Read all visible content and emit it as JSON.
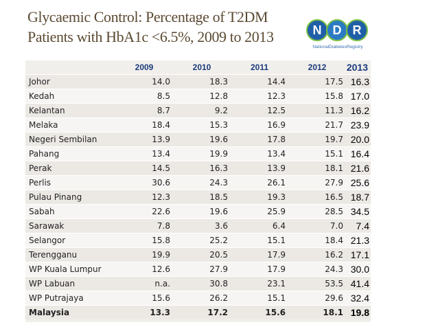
{
  "title": {
    "line1": "Glycaemic Control: Percentage of T2DM",
    "line2": "Patients with HbA1c <6.5%, 2009 to 2013"
  },
  "logo": {
    "letters": [
      "N",
      "D",
      "R"
    ],
    "caption": "NationalDiabetesRegistry",
    "colors": {
      "blue": "#1f5fa8",
      "green": "#7bc043"
    }
  },
  "table": {
    "headers": [
      "",
      "2009",
      "2010",
      "2011",
      "2012",
      "2013"
    ],
    "rows": [
      [
        "Johor",
        "14.0",
        "18.3",
        "14.4",
        "17.5",
        "16.3"
      ],
      [
        "Kedah",
        "8.5",
        "12.8",
        "12.3",
        "15.8",
        "17.0"
      ],
      [
        "Kelantan",
        "8.7",
        "9.2",
        "12.5",
        "11.3",
        "16.2"
      ],
      [
        "Melaka",
        "18.4",
        "15.3",
        "16.9",
        "21.7",
        "23.9"
      ],
      [
        "Negeri Sembilan",
        "13.9",
        "19.6",
        "17.8",
        "19.7",
        "20.0"
      ],
      [
        "Pahang",
        "13.4",
        "19.9",
        "13.4",
        "15.1",
        "16.4"
      ],
      [
        "Perak",
        "14.5",
        "16.3",
        "13.9",
        "18.1",
        "21.6"
      ],
      [
        "Perlis",
        "30.6",
        "24.3",
        "26.1",
        "27.9",
        "25.6"
      ],
      [
        "Pulau Pinang",
        "12.3",
        "18.5",
        "19.3",
        "16.5",
        "18.7"
      ],
      [
        "Sabah",
        "22.6",
        "19.6",
        "25.9",
        "28.5",
        "34.5"
      ],
      [
        "Sarawak",
        "7.8",
        "3.6",
        "6.4",
        "7.0",
        "7.4"
      ],
      [
        "Selangor",
        "15.8",
        "25.2",
        "15.1",
        "18.4",
        "21.3"
      ],
      [
        "Terengganu",
        "19.9",
        "20.5",
        "17.9",
        "16.2",
        "17.1"
      ],
      [
        "WP Kuala Lumpur",
        "12.6",
        "27.9",
        "17.9",
        "24.3",
        "30.0"
      ],
      [
        "WP Labuan",
        "n.a.",
        "30.8",
        "23.1",
        "53.5",
        "41.4"
      ],
      [
        "WP Putrajaya",
        "15.6",
        "26.2",
        "15.1",
        "29.6",
        "32.4"
      ],
      [
        "Malaysia",
        "13.3",
        "17.2",
        "15.6",
        "18.1",
        "19.8"
      ]
    ],
    "bold_row_index": 16
  }
}
